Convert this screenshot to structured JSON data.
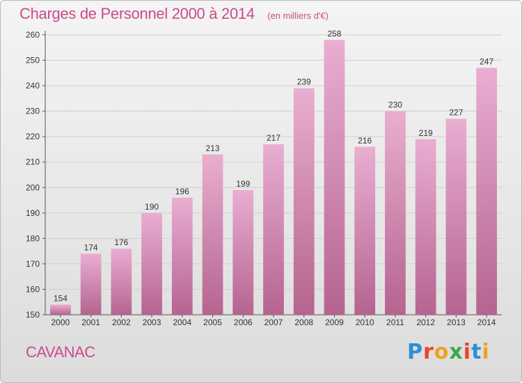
{
  "header": {
    "title": "Charges de Personnel 2000 à 2014",
    "subtitle": "(en milliers d'€)"
  },
  "footer": {
    "commune": "CAVANAC",
    "brand_letters": [
      "P",
      "r",
      "o",
      "x",
      "i",
      "t",
      "i"
    ],
    "brand_colors": [
      "#2e8fd4",
      "#e8452c",
      "#f0a21e",
      "#3aa845",
      "#e8452c",
      "#2e8fd4",
      "#f0a21e"
    ]
  },
  "chart_data": {
    "type": "bar",
    "title": "Charges de Personnel 2000 à 2014",
    "subtitle": "(en milliers d'€)",
    "xlabel": "",
    "ylabel": "",
    "categories": [
      "2000",
      "2001",
      "2002",
      "2003",
      "2004",
      "2005",
      "2006",
      "2007",
      "2008",
      "2009",
      "2010",
      "2011",
      "2012",
      "2013",
      "2014"
    ],
    "values": [
      154,
      174,
      176,
      190,
      196,
      213,
      199,
      217,
      239,
      258,
      216,
      230,
      219,
      227,
      247
    ],
    "ylim": [
      150,
      260
    ],
    "yticks": [
      150,
      160,
      170,
      180,
      190,
      200,
      210,
      220,
      230,
      240,
      250,
      260
    ],
    "grid": true,
    "legend": "none",
    "colors": {
      "bar_light": "#e9aed1",
      "bar_dark": "#b5648f",
      "text": "#333333",
      "grid": "#cfcfcf"
    }
  }
}
